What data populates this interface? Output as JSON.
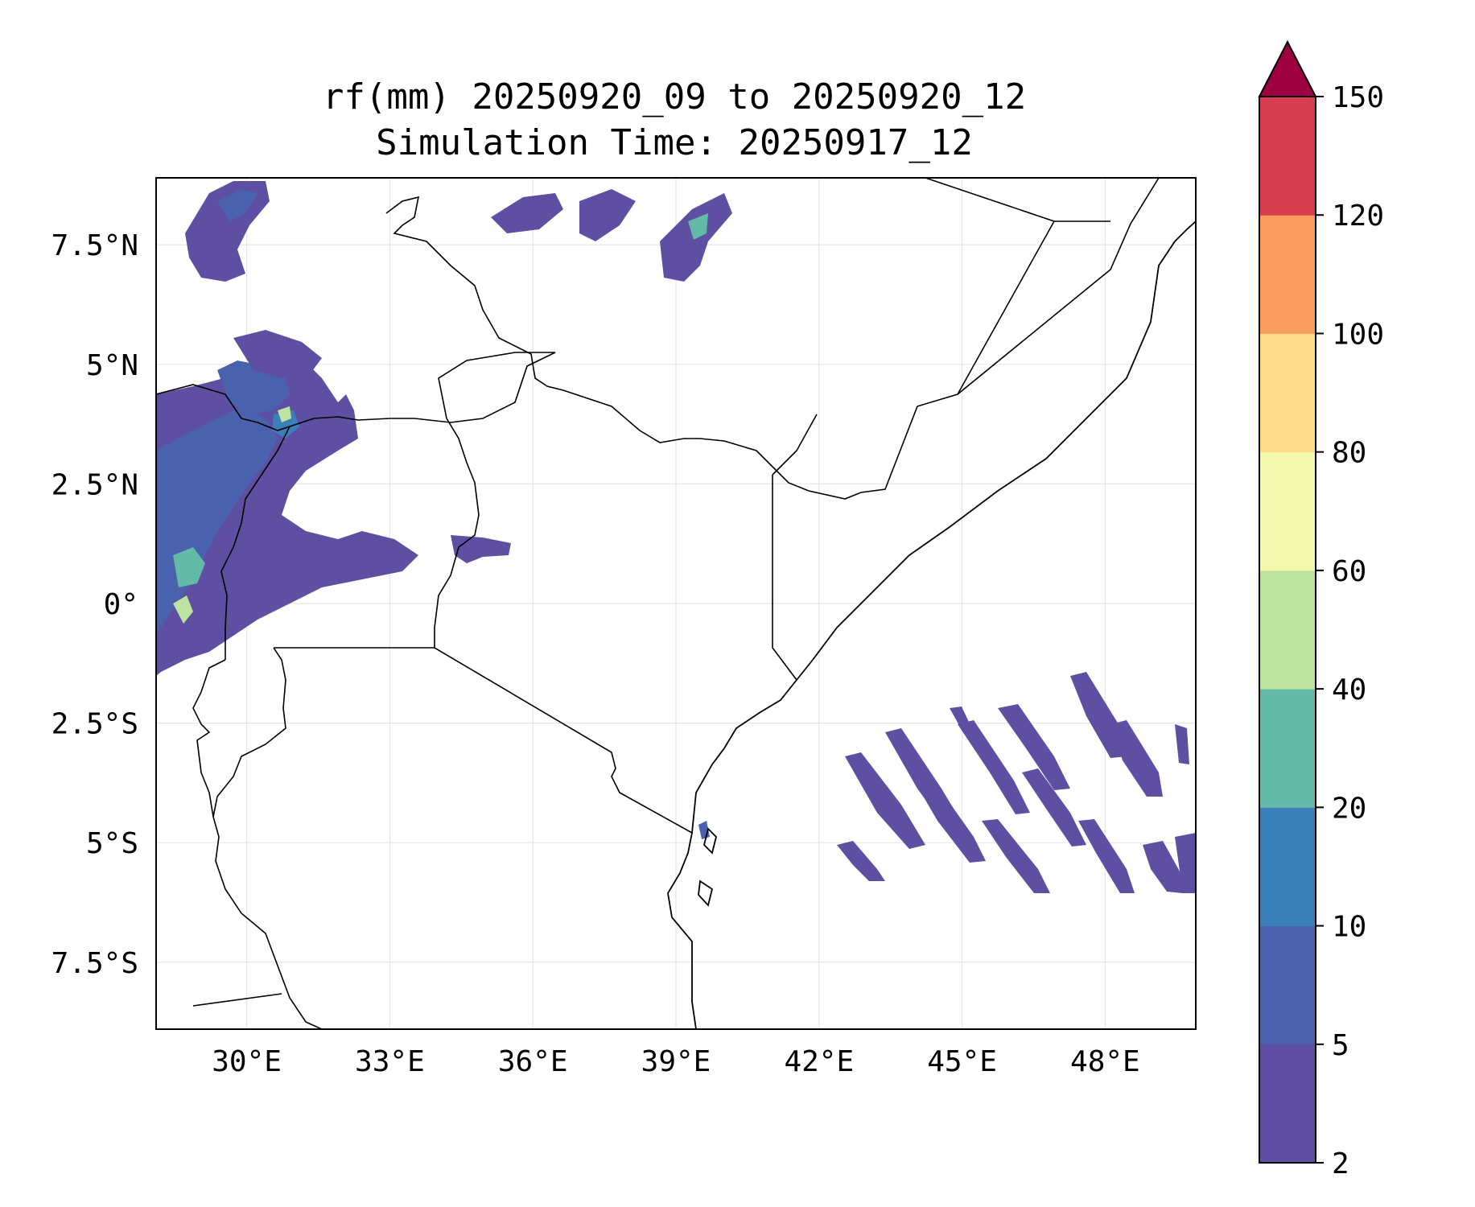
{
  "figure": {
    "title_line1": "rf(mm) 20250920_09 to 20250920_12",
    "title_line2": "Simulation Time: 20250917_12"
  },
  "map": {
    "lon_ticks": [
      "30°E",
      "33°E",
      "36°E",
      "39°E",
      "42°E",
      "45°E",
      "48°E"
    ],
    "lat_ticks": [
      "7.5°N",
      "5°N",
      "2.5°N",
      "0°",
      "2.5°S",
      "5°S",
      "7.5°S"
    ],
    "extent": {
      "lon": [
        28.1,
        49.9
      ],
      "lat": [
        -8.9,
        8.9
      ]
    },
    "grid": true,
    "colors": {
      "border": "#000000",
      "grid": "#e6e6e6"
    }
  },
  "colorbar": {
    "levels": [
      "2",
      "5",
      "10",
      "20",
      "40",
      "60",
      "80",
      "100",
      "120",
      "150"
    ],
    "colors": [
      "#5e4fa2",
      "#4a62ad",
      "#3a7fb8",
      "#63bba7",
      "#bde3a0",
      "#f2f8ad",
      "#fddc8a",
      "#f99e5e",
      "#d63d4e",
      "#9e0142"
    ],
    "extend": "max"
  }
}
